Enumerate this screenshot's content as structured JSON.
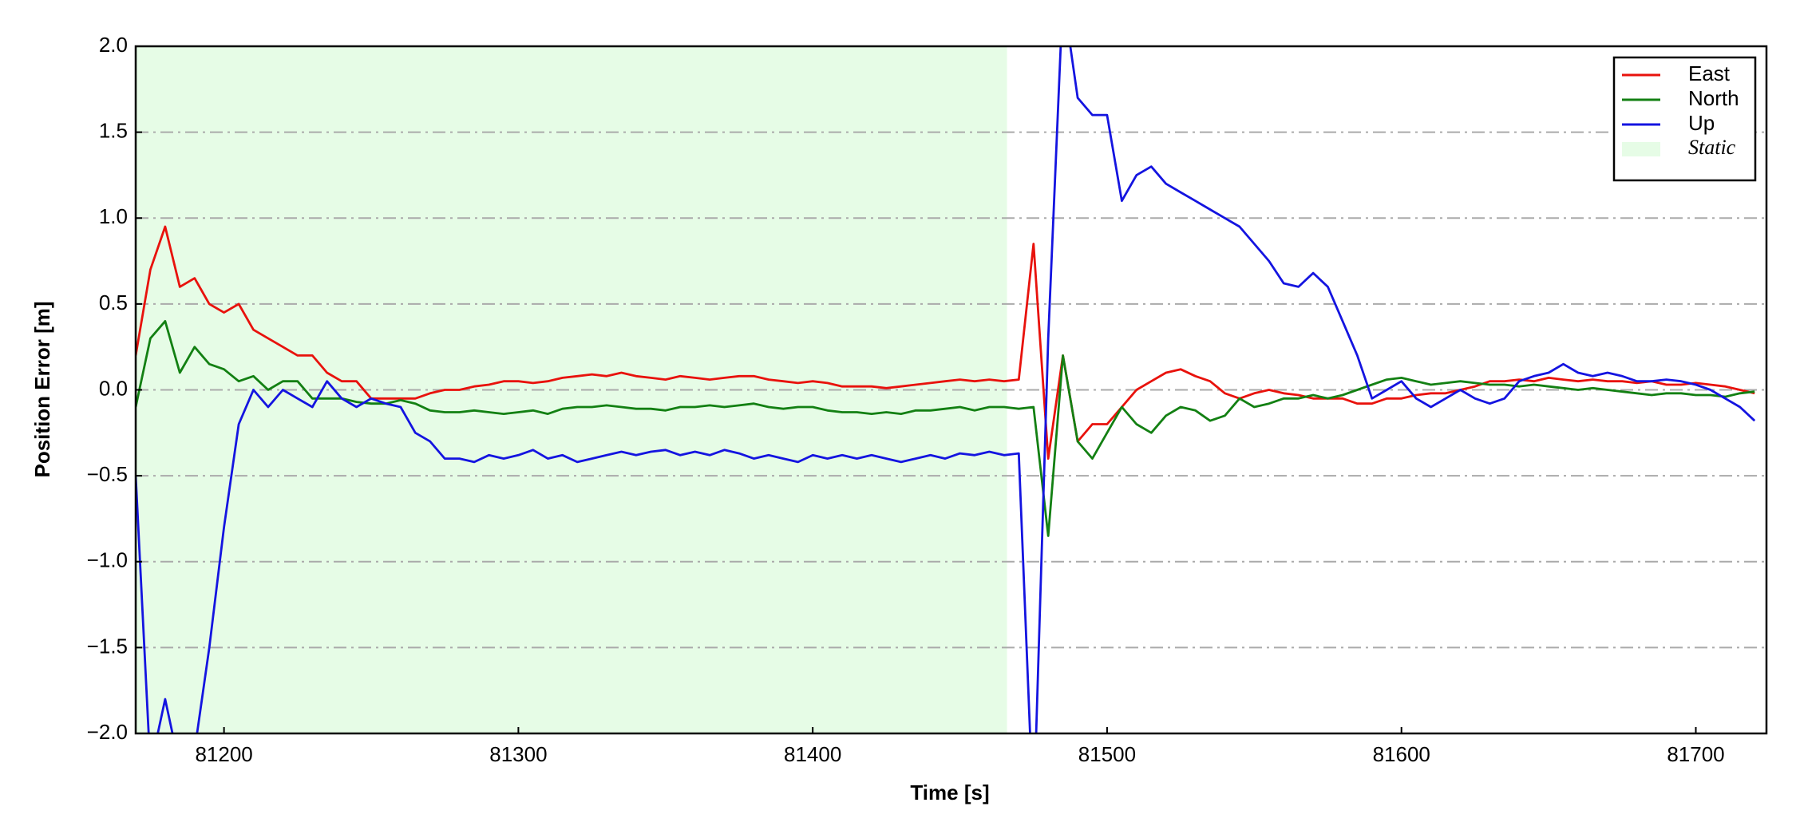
{
  "chart_data": {
    "type": "line",
    "xlabel": "Time [s]",
    "ylabel": "Position Error [m]",
    "xlim": [
      81170,
      81724
    ],
    "ylim": [
      -2.0,
      2.0
    ],
    "xticks": [
      81200,
      81300,
      81400,
      81500,
      81600,
      81700
    ],
    "yticks": [
      {
        "value": -2.0,
        "label": "−2.0"
      },
      {
        "value": -1.5,
        "label": "−1.5"
      },
      {
        "value": -1.0,
        "label": "−1.0"
      },
      {
        "value": -0.5,
        "label": "−0.5"
      },
      {
        "value": 0.0,
        "label": "0.0"
      },
      {
        "value": 0.5,
        "label": "0.5"
      },
      {
        "value": 1.0,
        "label": "1.0"
      },
      {
        "value": 1.5,
        "label": "1.5"
      },
      {
        "value": 2.0,
        "label": "2.0"
      }
    ],
    "grid": true,
    "legend": "upper right",
    "shaded_regions": [
      {
        "name": "Static",
        "start": 81170,
        "end": 81466,
        "color": "#e6fce6"
      }
    ],
    "x": [
      81170,
      81175,
      81180,
      81185,
      81190,
      81195,
      81200,
      81205,
      81210,
      81215,
      81220,
      81225,
      81230,
      81235,
      81240,
      81245,
      81250,
      81255,
      81260,
      81265,
      81270,
      81275,
      81280,
      81285,
      81290,
      81295,
      81300,
      81305,
      81310,
      81315,
      81320,
      81325,
      81330,
      81335,
      81340,
      81345,
      81350,
      81355,
      81360,
      81365,
      81370,
      81375,
      81380,
      81385,
      81390,
      81395,
      81400,
      81405,
      81410,
      81415,
      81420,
      81425,
      81430,
      81435,
      81440,
      81445,
      81450,
      81455,
      81460,
      81465,
      81470,
      81475,
      81480,
      81485,
      81490,
      81495,
      81500,
      81505,
      81510,
      81515,
      81520,
      81525,
      81530,
      81535,
      81540,
      81545,
      81550,
      81555,
      81560,
      81565,
      81570,
      81575,
      81580,
      81585,
      81590,
      81595,
      81600,
      81605,
      81610,
      81615,
      81620,
      81625,
      81630,
      81635,
      81640,
      81645,
      81650,
      81655,
      81660,
      81665,
      81670,
      81675,
      81680,
      81685,
      81690,
      81695,
      81700,
      81705,
      81710,
      81715,
      81720
    ],
    "series": [
      {
        "name": "East",
        "color": "#e8120c",
        "values": [
          0.2,
          0.7,
          0.95,
          0.6,
          0.65,
          0.5,
          0.45,
          0.5,
          0.35,
          0.3,
          0.25,
          0.2,
          0.2,
          0.1,
          0.05,
          0.05,
          -0.05,
          -0.05,
          -0.05,
          -0.05,
          -0.02,
          0.0,
          0.0,
          0.02,
          0.03,
          0.05,
          0.05,
          0.04,
          0.05,
          0.07,
          0.08,
          0.09,
          0.08,
          0.1,
          0.08,
          0.07,
          0.06,
          0.08,
          0.07,
          0.06,
          0.07,
          0.08,
          0.08,
          0.06,
          0.05,
          0.04,
          0.05,
          0.04,
          0.02,
          0.02,
          0.02,
          0.01,
          0.02,
          0.03,
          0.04,
          0.05,
          0.06,
          0.05,
          0.06,
          0.05,
          0.06,
          0.85,
          -0.4,
          0.2,
          -0.3,
          -0.2,
          -0.2,
          -0.1,
          0.0,
          0.05,
          0.1,
          0.12,
          0.08,
          0.05,
          -0.02,
          -0.05,
          -0.02,
          0.0,
          -0.02,
          -0.03,
          -0.05,
          -0.05,
          -0.05,
          -0.08,
          -0.08,
          -0.05,
          -0.05,
          -0.03,
          -0.02,
          -0.02,
          0.0,
          0.02,
          0.05,
          0.05,
          0.06,
          0.05,
          0.07,
          0.06,
          0.05,
          0.06,
          0.05,
          0.05,
          0.04,
          0.05,
          0.03,
          0.03,
          0.04,
          0.03,
          0.02,
          0.0,
          -0.02
        ]
      },
      {
        "name": "North",
        "color": "#138013",
        "values": [
          -0.1,
          0.3,
          0.4,
          0.1,
          0.25,
          0.15,
          0.12,
          0.05,
          0.08,
          0.0,
          0.05,
          0.05,
          -0.05,
          -0.05,
          -0.05,
          -0.07,
          -0.08,
          -0.08,
          -0.06,
          -0.08,
          -0.12,
          -0.13,
          -0.13,
          -0.12,
          -0.13,
          -0.14,
          -0.13,
          -0.12,
          -0.14,
          -0.11,
          -0.1,
          -0.1,
          -0.09,
          -0.1,
          -0.11,
          -0.11,
          -0.12,
          -0.1,
          -0.1,
          -0.09,
          -0.1,
          -0.09,
          -0.08,
          -0.1,
          -0.11,
          -0.1,
          -0.1,
          -0.12,
          -0.13,
          -0.13,
          -0.14,
          -0.13,
          -0.14,
          -0.12,
          -0.12,
          -0.11,
          -0.1,
          -0.12,
          -0.1,
          -0.1,
          -0.11,
          -0.1,
          -0.85,
          0.2,
          -0.3,
          -0.4,
          -0.25,
          -0.1,
          -0.2,
          -0.25,
          -0.15,
          -0.1,
          -0.12,
          -0.18,
          -0.15,
          -0.05,
          -0.1,
          -0.08,
          -0.05,
          -0.05,
          -0.03,
          -0.05,
          -0.03,
          0.0,
          0.03,
          0.06,
          0.07,
          0.05,
          0.03,
          0.04,
          0.05,
          0.04,
          0.03,
          0.03,
          0.02,
          0.03,
          0.02,
          0.01,
          0.0,
          0.01,
          0.0,
          -0.01,
          -0.02,
          -0.03,
          -0.02,
          -0.02,
          -0.03,
          -0.03,
          -0.04,
          -0.02,
          -0.01
        ]
      },
      {
        "name": "Up",
        "color": "#1414e0",
        "values": [
          -0.5,
          -2.2,
          -1.8,
          -2.2,
          -2.1,
          -1.5,
          -0.8,
          -0.2,
          0.0,
          -0.1,
          0.0,
          -0.05,
          -0.1,
          0.05,
          -0.05,
          -0.1,
          -0.05,
          -0.08,
          -0.1,
          -0.25,
          -0.3,
          -0.4,
          -0.4,
          -0.42,
          -0.38,
          -0.4,
          -0.38,
          -0.35,
          -0.4,
          -0.38,
          -0.42,
          -0.4,
          -0.38,
          -0.36,
          -0.38,
          -0.36,
          -0.35,
          -0.38,
          -0.36,
          -0.38,
          -0.35,
          -0.37,
          -0.4,
          -0.38,
          -0.4,
          -0.42,
          -0.38,
          -0.4,
          -0.38,
          -0.4,
          -0.38,
          -0.4,
          -0.42,
          -0.4,
          -0.38,
          -0.4,
          -0.37,
          -0.38,
          -0.36,
          -0.38,
          -0.37,
          -2.5,
          0.3,
          2.3,
          1.7,
          1.6,
          1.6,
          1.1,
          1.25,
          1.3,
          1.2,
          1.15,
          1.1,
          1.05,
          1.0,
          0.95,
          0.85,
          0.75,
          0.62,
          0.6,
          0.68,
          0.6,
          0.4,
          0.2,
          -0.05,
          0.0,
          0.05,
          -0.05,
          -0.1,
          -0.05,
          0.0,
          -0.05,
          -0.08,
          -0.05,
          0.05,
          0.08,
          0.1,
          0.15,
          0.1,
          0.08,
          0.1,
          0.08,
          0.05,
          0.05,
          0.06,
          0.05,
          0.03,
          0.0,
          -0.05,
          -0.1,
          -0.18
        ]
      }
    ]
  }
}
